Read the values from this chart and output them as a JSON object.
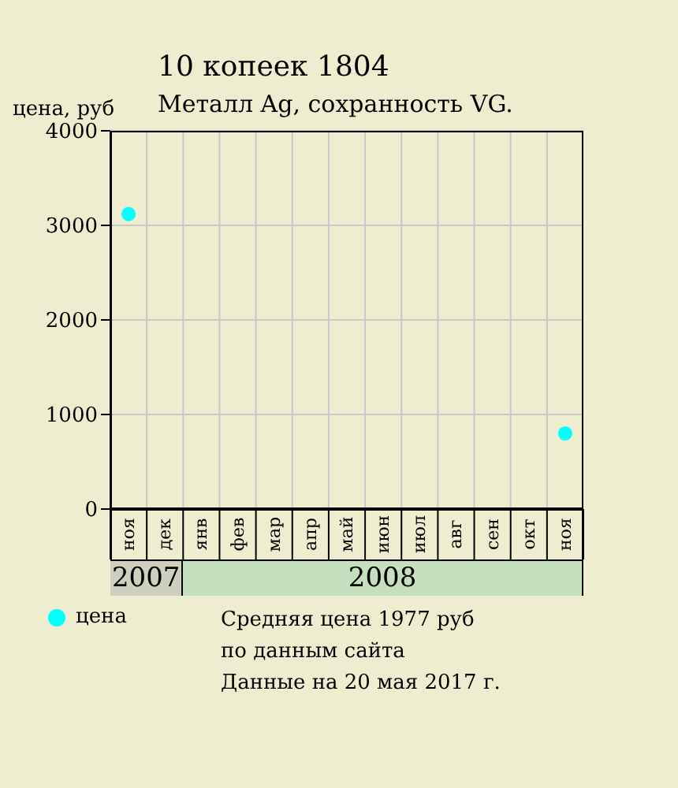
{
  "chart_data": {
    "type": "scatter",
    "title": "10 копеек 1804",
    "subtitle": "Металл Ag, сохранность VG.",
    "ylabel": "цена, руб",
    "categories": [
      "ноя",
      "дек",
      "янв",
      "фев",
      "мар",
      "апр",
      "май",
      "июн",
      "июл",
      "авг",
      "сен",
      "окт",
      "ноя"
    ],
    "series": [
      {
        "name": "цена",
        "color": "#00ffff",
        "values": [
          3120,
          null,
          null,
          null,
          null,
          null,
          null,
          null,
          null,
          null,
          null,
          null,
          800
        ]
      }
    ],
    "ylim": [
      0,
      4000
    ],
    "yticks": [
      0,
      1000,
      2000,
      3000,
      4000
    ],
    "grid": true,
    "marker": "circle",
    "legend": "bottom left",
    "annotations": [
      "2007",
      "2008",
      "Средняя цена 1977 руб",
      "по данным сайта",
      "Данные на 20 мая 2017 г."
    ]
  }
}
